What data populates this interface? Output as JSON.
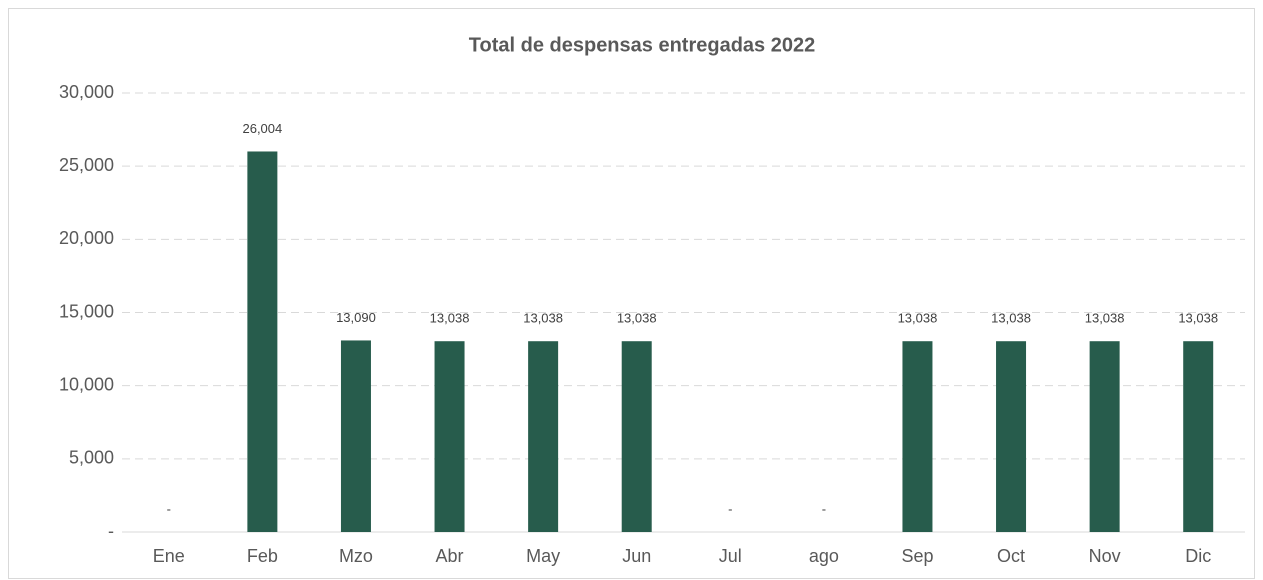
{
  "chart_data": {
    "type": "bar",
    "title": "Total de despensas entregadas 2022",
    "categories": [
      "Ene",
      "Feb",
      "Mzo",
      "Abr",
      "May",
      "Jun",
      "Jul",
      "ago",
      "Sep",
      "Oct",
      "Nov",
      "Dic"
    ],
    "values": [
      0,
      26004,
      13090,
      13038,
      13038,
      13038,
      0,
      0,
      13038,
      13038,
      13038,
      13038
    ],
    "value_labels": [
      "-",
      "26,004",
      "13,090",
      "13,038",
      "13,038",
      "13,038",
      "-",
      "-",
      "13,038",
      "13,038",
      "13,038",
      "13,038"
    ],
    "color": "#275c4c",
    "ylim": [
      0,
      30000
    ],
    "yticks": [
      {
        "value": 0,
        "label": "-"
      },
      {
        "value": 5000,
        "label": "5,000"
      },
      {
        "value": 10000,
        "label": "10,000"
      },
      {
        "value": 15000,
        "label": "15,000"
      },
      {
        "value": 20000,
        "label": "20,000"
      },
      {
        "value": 25000,
        "label": "25,000"
      },
      {
        "value": 30000,
        "label": "30,000"
      }
    ],
    "grid": true
  }
}
